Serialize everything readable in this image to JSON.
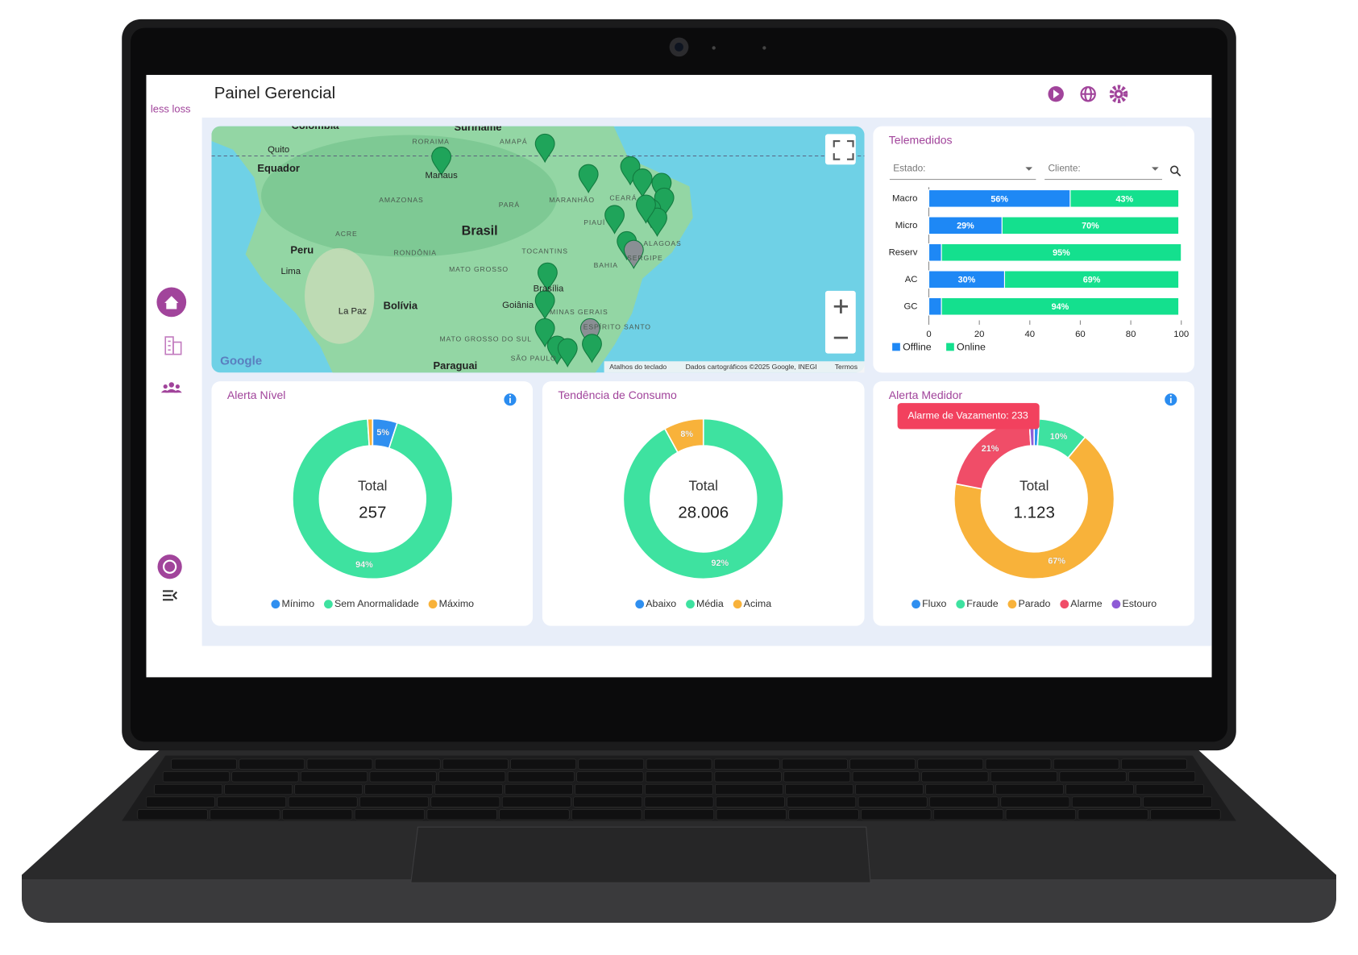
{
  "header": {
    "logo": "less loss",
    "title": "Painel Gerencial"
  },
  "map": {
    "labels": [
      "Colombia",
      "Suriname",
      "Quito",
      "Equador",
      "RORAIMA",
      "AMAPÁ",
      "Manaus",
      "AMAZONAS",
      "PARÁ",
      "MARANHÃO",
      "CEARÁ",
      "PIAUÍ",
      "ACRE",
      "Brasil",
      "RONDÔNIA",
      "TOCANTINS",
      "Peru",
      "Lima",
      "MATO GROSSO",
      "BAHIA",
      "Brasília",
      "Goiânia",
      "La Paz",
      "Bolívia",
      "MINAS GERAIS",
      "ESPÍRITO SANTO",
      "MATO GROSSO DO SUL",
      "SÃO PAULO",
      "Paraguai",
      "ALAGOAS",
      "SERGIPE"
    ],
    "attribution": {
      "google": "Google",
      "shortcuts": "Atalhos do teclado",
      "data": "Dados cartográficos ©2025 Google, INEGI",
      "terms": "Termos"
    }
  },
  "chart_data": [
    {
      "type": "stacked-bar",
      "title": "Telemedidos",
      "filters": [
        "Estado:",
        "Cliente:"
      ],
      "categories": [
        "Macro",
        "Micro",
        "Reserv",
        "AC",
        "GC"
      ],
      "series": [
        {
          "name": "Offline",
          "color": "#1e88f5",
          "values": [
            56,
            29,
            5,
            30,
            5
          ],
          "value_labels": [
            "56%",
            "29%",
            null,
            "30%",
            null
          ]
        },
        {
          "name": "Online",
          "color": "#14e08e",
          "values": [
            43,
            70,
            95,
            69,
            94
          ],
          "value_labels": [
            "43%",
            "70%",
            "95%",
            "69%",
            "94%"
          ]
        }
      ],
      "xlim": [
        0,
        100
      ],
      "xticks": [
        0,
        20,
        40,
        60,
        80,
        100
      ],
      "legend": "bottom-left"
    },
    {
      "type": "donut",
      "title": "Alerta Nível",
      "center_label": "Total",
      "total": "257",
      "categories": [
        "Mínimo",
        "Sem Anormalidade",
        "Máximo"
      ],
      "colors": [
        "#2f8ff0",
        "#3ee2a0",
        "#f8b23a"
      ],
      "values": [
        5,
        94,
        1
      ],
      "value_labels": [
        "5%",
        "94%",
        null
      ]
    },
    {
      "type": "donut",
      "title": "Tendência de Consumo",
      "center_label": "Total",
      "total": "28.006",
      "categories": [
        "Abaixo",
        "Média",
        "Acima"
      ],
      "colors": [
        "#2f8ff0",
        "#3ee2a0",
        "#f8b23a"
      ],
      "values": [
        0,
        92,
        8
      ],
      "value_labels": [
        null,
        "92%",
        "8%"
      ]
    },
    {
      "type": "donut",
      "title": "Alerta Medidor",
      "center_label": "Total",
      "total": "1.123",
      "categories": [
        "Fluxo",
        "Fraude",
        "Parado",
        "Alarme",
        "Estouro"
      ],
      "colors": [
        "#2f8ff0",
        "#3ee2a0",
        "#f8b23a",
        "#f04d68",
        "#8e5bd6"
      ],
      "values": [
        1,
        10,
        67,
        21,
        1
      ],
      "value_labels": [
        null,
        "10%",
        "67%",
        "21%",
        null
      ],
      "tooltip": "Alarme de Vazamento: 233"
    }
  ]
}
